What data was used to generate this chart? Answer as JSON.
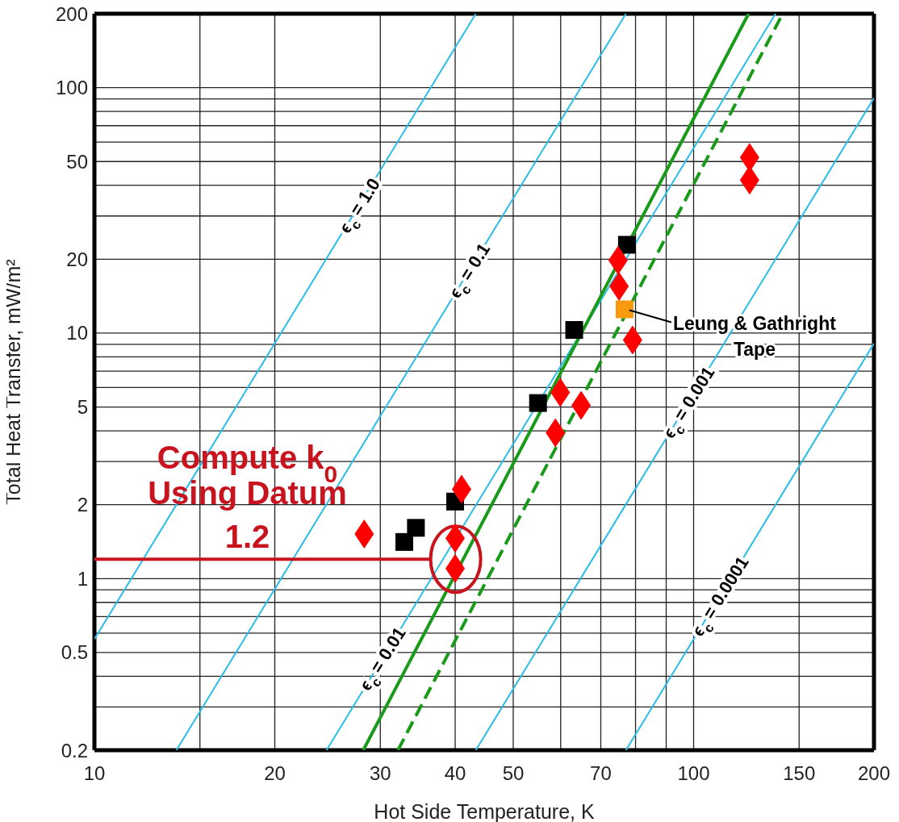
{
  "chart_data": {
    "type": "scatter",
    "xlabel": "Hot Side Temperature,  K",
    "ylabel": "Total Heat Transfer,  mW/m²",
    "log": "xy",
    "grid": true,
    "xlim": [
      10,
      200
    ],
    "ylim": [
      0.2,
      200
    ],
    "xticks": [
      10,
      {
        "value": 15,
        "label": null
      },
      20,
      30,
      40,
      50,
      {
        "value": 60,
        "label": null
      },
      70,
      {
        "value": 80,
        "label": null
      },
      {
        "value": 90,
        "label": null
      },
      100,
      150,
      200
    ],
    "yticks": [
      0.2,
      {
        "value": 0.3,
        "label": null
      },
      {
        "value": 0.4,
        "label": null
      },
      0.5,
      {
        "value": 0.6,
        "label": null
      },
      {
        "value": 0.7,
        "label": null
      },
      {
        "value": 0.8,
        "label": null
      },
      {
        "value": 0.9,
        "label": null
      },
      1,
      2,
      {
        "value": 3,
        "label": null
      },
      {
        "value": 4,
        "label": null
      },
      5,
      {
        "value": 6,
        "label": null
      },
      {
        "value": 7,
        "label": null
      },
      {
        "value": 8,
        "label": null
      },
      {
        "value": 9,
        "label": null
      },
      10,
      20,
      {
        "value": 30,
        "label": null
      },
      {
        "value": 40,
        "label": null
      },
      50,
      {
        "value": 60,
        "label": null
      },
      {
        "value": 70,
        "label": null
      },
      {
        "value": 80,
        "label": null
      },
      {
        "value": 90,
        "label": null
      },
      100,
      200
    ],
    "series": [
      {
        "type": "line",
        "color": "#29bde8",
        "line_style": "solid",
        "x": [
          10,
          43.3
        ],
        "values": [
          0.567,
          200
        ]
      },
      {
        "type": "line",
        "color": "#29bde8",
        "line_style": "solid",
        "x": [
          13.7,
          77.1
        ],
        "values": [
          0.2,
          200
        ]
      },
      {
        "type": "line",
        "color": "#29bde8",
        "line_style": "solid",
        "x": [
          24.4,
          137
        ],
        "values": [
          0.2,
          200
        ]
      },
      {
        "type": "line",
        "color": "#29bde8",
        "line_style": "solid",
        "x": [
          43.3,
          200
        ],
        "values": [
          0.2,
          90.7
        ]
      },
      {
        "type": "line",
        "color": "#29bde8",
        "line_style": "solid",
        "x": [
          77.1,
          200
        ],
        "values": [
          0.2,
          9.07
        ]
      },
      {
        "type": "line",
        "color": "#1a9a1a",
        "line_style": "solid",
        "x": [
          28.1,
          123.5
        ],
        "values": [
          0.2,
          200
        ]
      },
      {
        "type": "line",
        "color": "#1a9a1a",
        "line_style": "dashed",
        "x": [
          32.1,
          140.8
        ],
        "values": [
          0.2,
          200
        ]
      },
      {
        "type": "line",
        "color": "#c8141e",
        "line_style": "solid",
        "x": [
          10,
          36.4
        ],
        "values": [
          1.2,
          1.2
        ]
      },
      {
        "color": "#000000",
        "marker": "square",
        "x": [
          32.9,
          34.4,
          40,
          55,
          63.2,
          77.4
        ],
        "values": [
          1.41,
          1.61,
          2.06,
          5.19,
          10.3,
          22.9
        ]
      },
      {
        "color": "#f79a10",
        "marker": "square",
        "x": [
          76.7
        ],
        "values": [
          12.5
        ]
      },
      {
        "color": "#ff0000",
        "marker": "diamond",
        "x": [
          28.2,
          41,
          40,
          40,
          58.8,
          59.9,
          64.9,
          74.8,
          75.1,
          79.1,
          124,
          124
        ],
        "values": [
          1.52,
          2.31,
          1.46,
          1.1,
          3.93,
          5.73,
          5.08,
          19.8,
          15.5,
          9.38,
          51.9,
          42
        ]
      }
    ],
    "annotations": [
      {
        "text": "ϵ$_{c}$ = 1.0",
        "x": 27.65,
        "y": 33.1
      },
      {
        "text": "ϵ$_{c}$ = 0.1",
        "x": 42.2,
        "y": 18
      },
      {
        "text": "ϵ$_{c}$ = 0.01",
        "x": 30.2,
        "y": 0.472
      },
      {
        "text": "ϵ$_{c}$ = 0.001",
        "x": 98,
        "y": 5.23
      },
      {
        "text": "ϵ$_{c}$ = 0.0001",
        "x": 110.6,
        "y": 0.848
      },
      {
        "text": "Leung & Gathright\nTape",
        "x": 76.7,
        "y": 12.5
      },
      {
        "text": "Compute k$_{0}$\nUsing Datum\n1.2",
        "x": 18,
        "y": 1.2
      }
    ]
  }
}
